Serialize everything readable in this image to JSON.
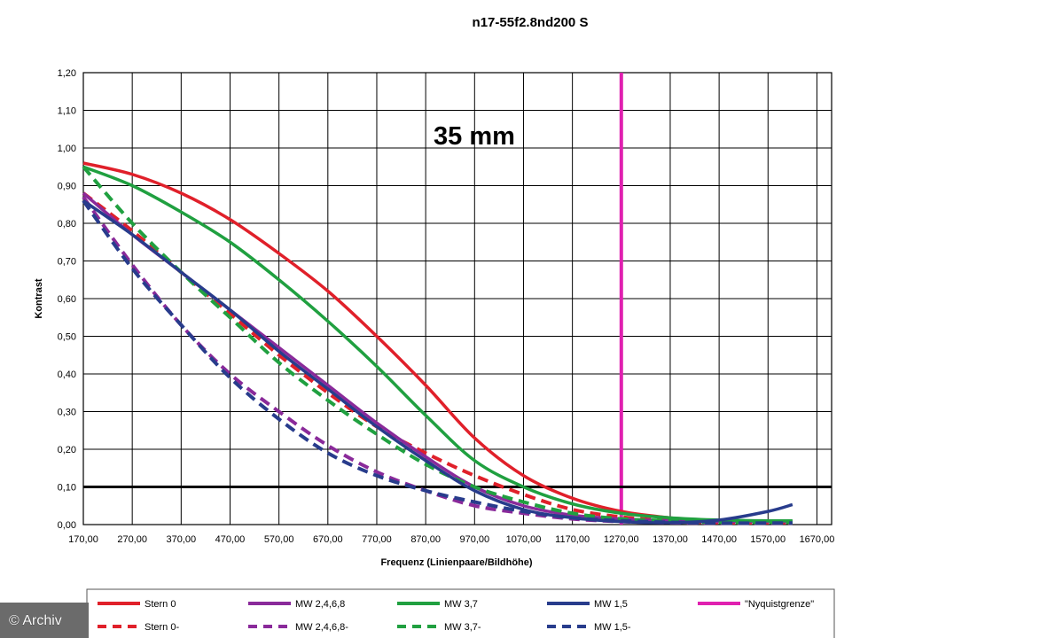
{
  "chart_data": {
    "type": "line",
    "title": "n17-55f2.8nd200 S",
    "xlabel": "Frequenz (Linienpaare/Bildhöhe)",
    "ylabel": "Kontrast",
    "annotation": "35 mm",
    "xlim": [
      170,
      1700
    ],
    "ylim": [
      0,
      1.2
    ],
    "x_ticks": [
      "170,00",
      "270,00",
      "370,00",
      "470,00",
      "570,00",
      "670,00",
      "770,00",
      "870,00",
      "970,00",
      "1070,00",
      "1170,00",
      "1270,00",
      "1370,00",
      "1470,00",
      "1570,00",
      "1670,00"
    ],
    "y_ticks": [
      "0,00",
      "0,10",
      "0,20",
      "0,30",
      "0,40",
      "0,50",
      "0,60",
      "0,70",
      "0,80",
      "0,90",
      "1,00",
      "1,10",
      "1,20"
    ],
    "grid": true,
    "legend_position": "bottom",
    "reference_lines": [
      {
        "name": "\"Nyquistgrenze\"",
        "orientation": "vertical",
        "value": 1270,
        "color": "#e020b0"
      },
      {
        "orientation": "horizontal",
        "value": 0.1,
        "color": "#000000"
      }
    ],
    "x": [
      170,
      270,
      370,
      470,
      570,
      670,
      770,
      870,
      970,
      1070,
      1170,
      1270,
      1370,
      1470,
      1570,
      1620
    ],
    "series": [
      {
        "name": "Stern 0",
        "color": "#e0202a",
        "dash": false,
        "values": [
          0.96,
          0.93,
          0.88,
          0.81,
          0.72,
          0.62,
          0.5,
          0.37,
          0.23,
          0.13,
          0.07,
          0.035,
          0.018,
          0.01,
          0.008,
          0.008
        ]
      },
      {
        "name": "Stern 0-",
        "color": "#e0202a",
        "dash": true,
        "values": [
          0.88,
          0.78,
          0.67,
          0.56,
          0.45,
          0.35,
          0.26,
          0.19,
          0.13,
          0.08,
          0.04,
          0.02,
          0.01,
          0.005,
          0.005,
          0.005
        ]
      },
      {
        "name": "MW 2,4,6,8",
        "color": "#8a2a9a",
        "dash": false,
        "values": [
          0.88,
          0.77,
          0.67,
          0.57,
          0.47,
          0.37,
          0.27,
          0.18,
          0.1,
          0.05,
          0.025,
          0.015,
          0.01,
          0.008,
          0.008,
          0.008
        ]
      },
      {
        "name": "MW 2,4,6,8-",
        "color": "#8a2a9a",
        "dash": true,
        "values": [
          0.87,
          0.69,
          0.53,
          0.4,
          0.3,
          0.21,
          0.14,
          0.09,
          0.05,
          0.03,
          0.015,
          0.008,
          0.005,
          0.004,
          0.004,
          0.004
        ]
      },
      {
        "name": "MW 3,7",
        "color": "#20a040",
        "dash": false,
        "values": [
          0.95,
          0.9,
          0.83,
          0.75,
          0.65,
          0.54,
          0.42,
          0.29,
          0.17,
          0.1,
          0.055,
          0.03,
          0.018,
          0.012,
          0.01,
          0.01
        ]
      },
      {
        "name": "MW 3,7-",
        "color": "#20a040",
        "dash": true,
        "values": [
          0.95,
          0.8,
          0.67,
          0.55,
          0.43,
          0.33,
          0.24,
          0.16,
          0.1,
          0.06,
          0.03,
          0.015,
          0.01,
          0.006,
          0.006,
          0.006
        ]
      },
      {
        "name": "MW 1,5",
        "color": "#283c8c",
        "dash": false,
        "values": [
          0.86,
          0.77,
          0.67,
          0.57,
          0.46,
          0.36,
          0.26,
          0.17,
          0.09,
          0.04,
          0.018,
          0.008,
          0.005,
          0.012,
          0.035,
          0.053
        ]
      },
      {
        "name": "MW 1,5-",
        "color": "#283c8c",
        "dash": true,
        "values": [
          0.86,
          0.68,
          0.53,
          0.39,
          0.28,
          0.19,
          0.13,
          0.09,
          0.06,
          0.035,
          0.018,
          0.01,
          0.006,
          0.004,
          0.004,
          0.004
        ]
      }
    ],
    "legend": [
      {
        "label": "Stern 0",
        "color": "#e0202a",
        "dash": false
      },
      {
        "label": "MW 2,4,6,8",
        "color": "#8a2a9a",
        "dash": false
      },
      {
        "label": "MW 3,7",
        "color": "#20a040",
        "dash": false
      },
      {
        "label": "MW 1,5",
        "color": "#283c8c",
        "dash": false
      },
      {
        "label": "\"Nyquistgrenze\"",
        "color": "#e020b0",
        "dash": false
      },
      {
        "label": "Stern 0-",
        "color": "#e0202a",
        "dash": true
      },
      {
        "label": "MW 2,4,6,8-",
        "color": "#8a2a9a",
        "dash": true
      },
      {
        "label": "MW 3,7-",
        "color": "#20a040",
        "dash": true
      },
      {
        "label": "MW 1,5-",
        "color": "#283c8c",
        "dash": true
      }
    ]
  },
  "watermark": "© Archiv"
}
